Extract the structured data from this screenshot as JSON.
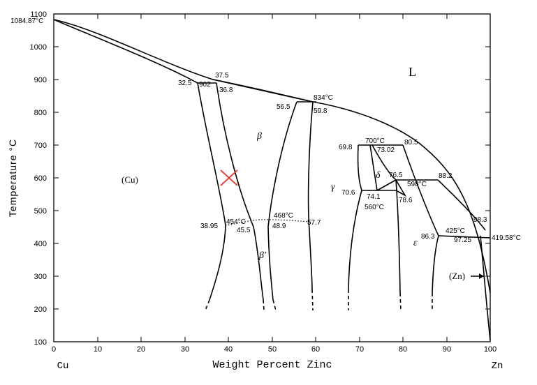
{
  "axes": {
    "x_label": "Weight Percent Zinc",
    "y_label": "Temperature °C",
    "x_ticks": [
      "0",
      "10",
      "20",
      "30",
      "40",
      "50",
      "60",
      "70",
      "80",
      "90",
      "100"
    ],
    "y_ticks": [
      "100",
      "200",
      "300",
      "400",
      "500",
      "600",
      "700",
      "800",
      "900",
      "1000",
      "1100"
    ],
    "x_start_label": "Cu",
    "x_end_label": "Zn"
  },
  "phases": {
    "liquid": "L",
    "cu": "(Cu)",
    "beta": "β",
    "beta_prime": "β'",
    "gamma": "γ",
    "delta": "δ",
    "epsilon": "ε",
    "zn": "(Zn)"
  },
  "annotations": {
    "cu_melt": "1084.87°C",
    "zn_melt": "419.58°C",
    "a_32_5": "32.5",
    "a_902": "902",
    "a_36_8": "36.8",
    "a_37_5": "37.5",
    "a_56_5": "56.5",
    "a_834": "834°C",
    "a_59_8": "59.8",
    "a_69_8": "69.8",
    "a_700": "700°C",
    "a_80_5": "80.5",
    "a_73_02": "73.02",
    "a_76_5": "76.5",
    "a_598": "598°C",
    "a_88_2": "88.2",
    "a_70_6": "70.6",
    "a_74_1": "74.1",
    "a_560": "560°C",
    "a_78_6": "78.6",
    "a_38_95": "38.95",
    "a_454": "454°C",
    "a_45_5": "45.5",
    "a_468": "468°C",
    "a_48_9": "48.9",
    "a_57_7": "57.7",
    "a_86_3": "86.3",
    "a_425": "425°C",
    "a_97_25": "97.25",
    "a_98_3": "98.3"
  },
  "marker": {
    "color": "#e0443c",
    "symbol": "x-marker"
  }
}
